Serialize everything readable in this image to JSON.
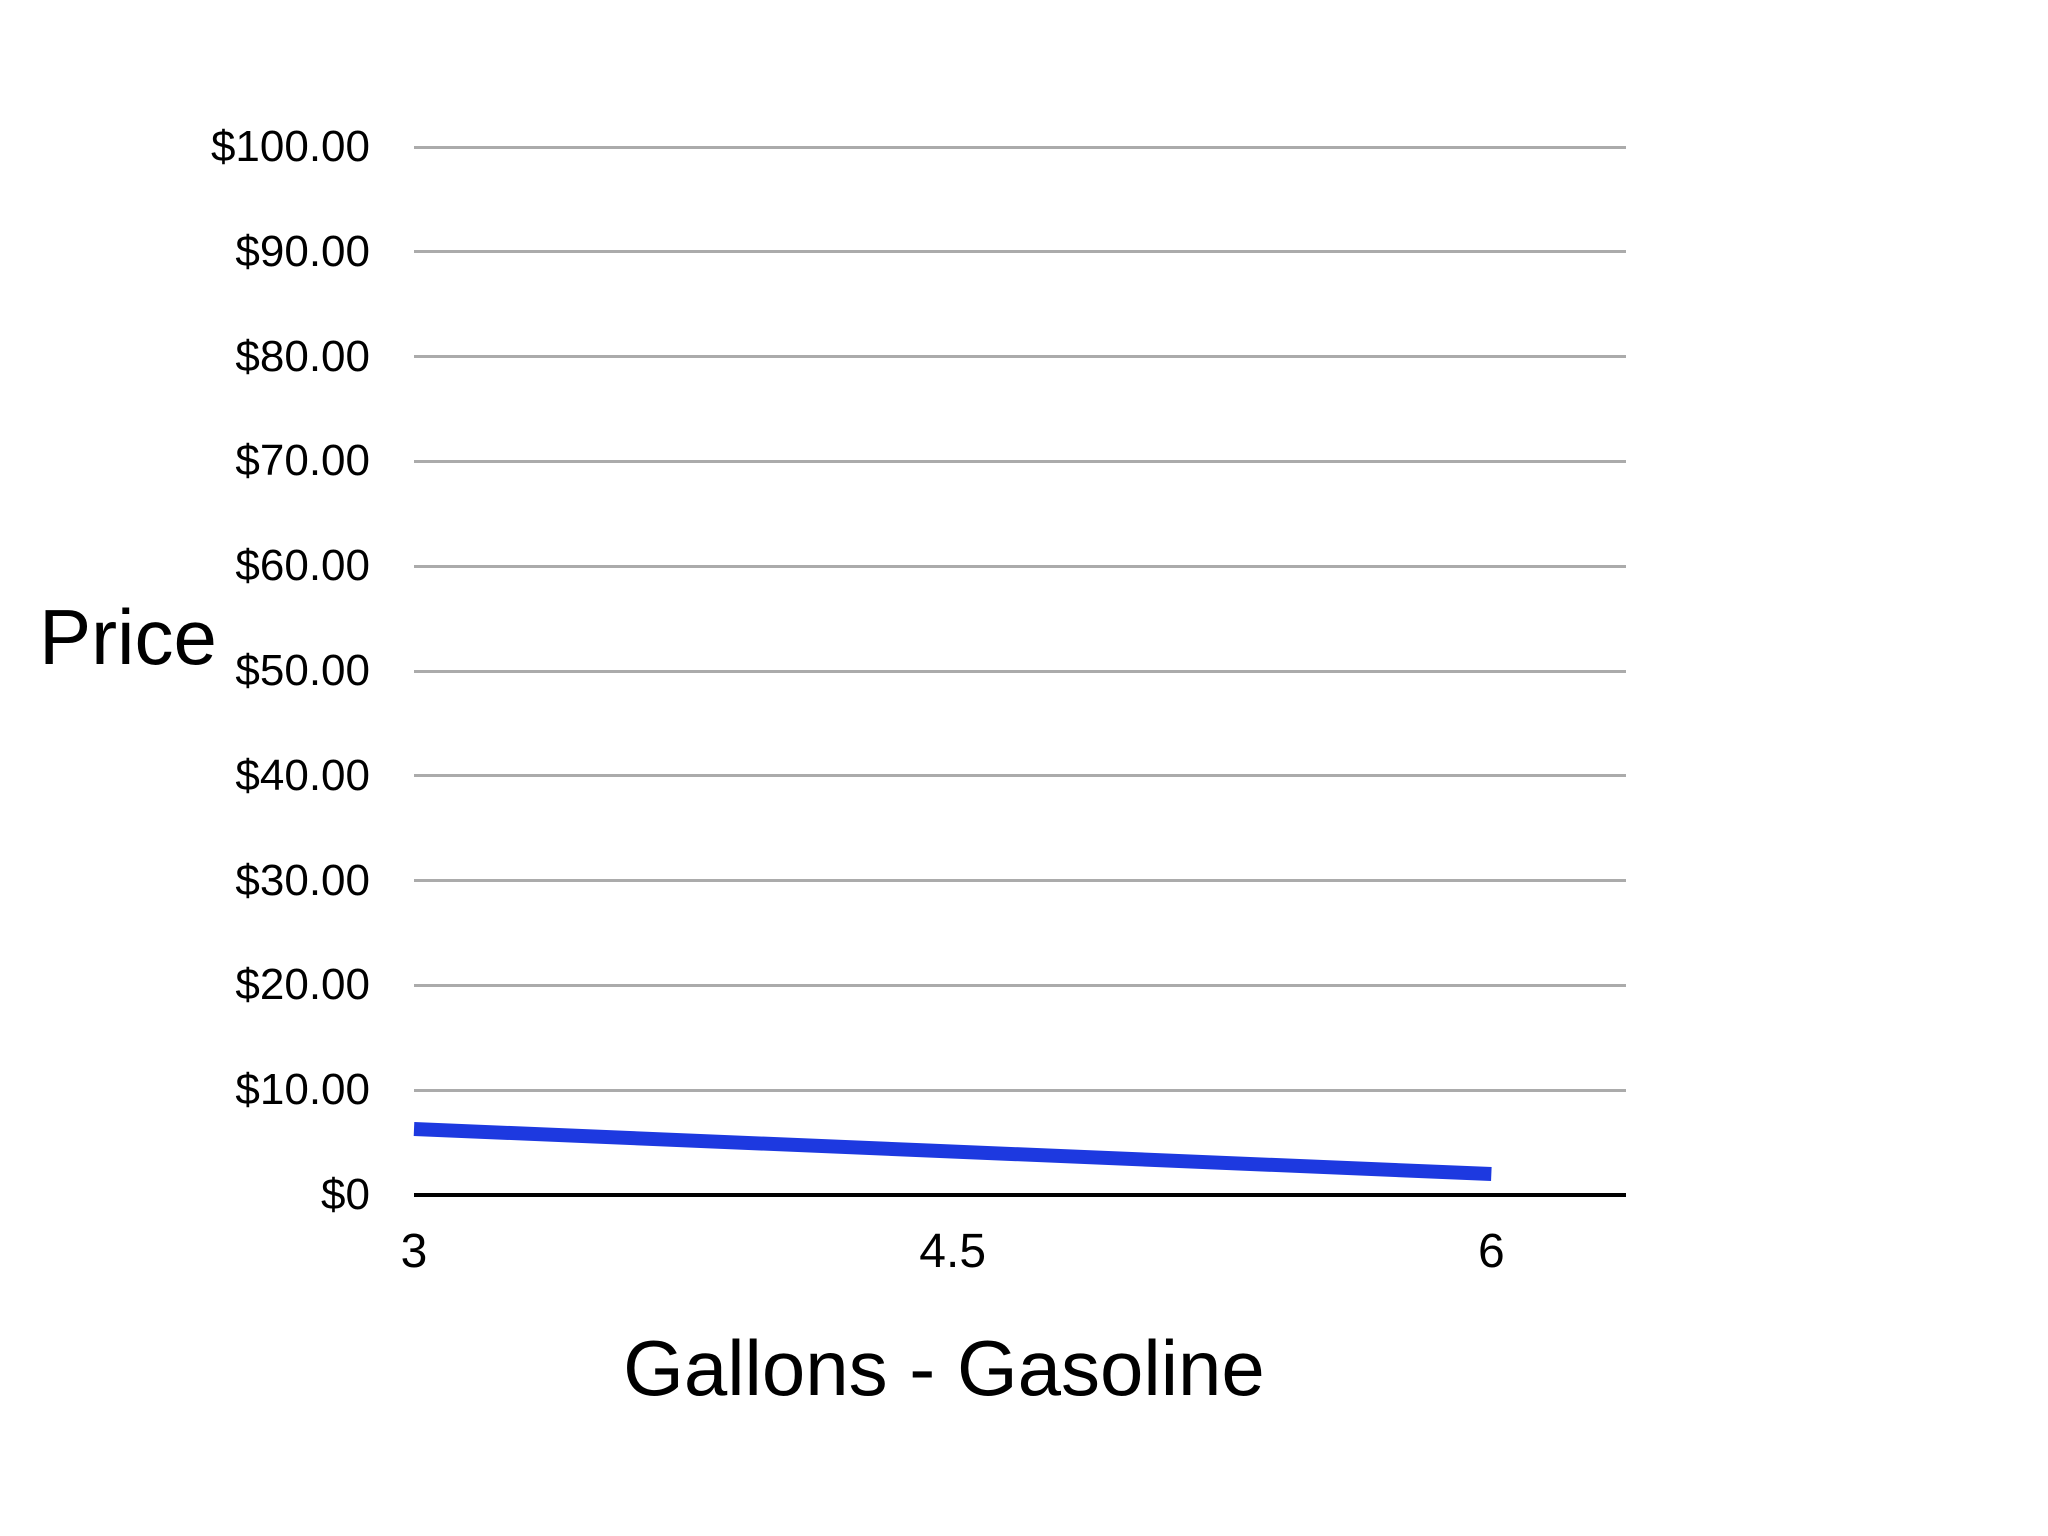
{
  "chart_data": {
    "type": "line",
    "title": "",
    "ylabel": "Price",
    "xlabel": "Gallons - Gasoline",
    "ylim": [
      0,
      100
    ],
    "xlim": [
      3,
      6.375
    ],
    "y_ticks": {
      "values": [
        0,
        10,
        20,
        30,
        40,
        50,
        60,
        70,
        80,
        90,
        100
      ],
      "labels": [
        "$0",
        "$10.00",
        "$20.00",
        "$30.00",
        "$40.00",
        "$50.00",
        "$60.00",
        "$70.00",
        "$80.00",
        "$90.00",
        "$100.00"
      ]
    },
    "x_ticks": {
      "values": [
        3,
        4.5,
        6
      ],
      "labels": [
        "3",
        "4.5",
        "6"
      ]
    },
    "grid": "horizontal-only",
    "legend_position": "none",
    "series": [
      {
        "color": "#1d39e0",
        "points": [
          [
            3,
            6.3
          ],
          [
            6,
            2.0
          ]
        ]
      }
    ],
    "colors": {
      "line": "#1d39e0",
      "gridline": "#ababab",
      "axis_line": "#000000",
      "text": "#000000",
      "background": "#ffffff"
    }
  }
}
